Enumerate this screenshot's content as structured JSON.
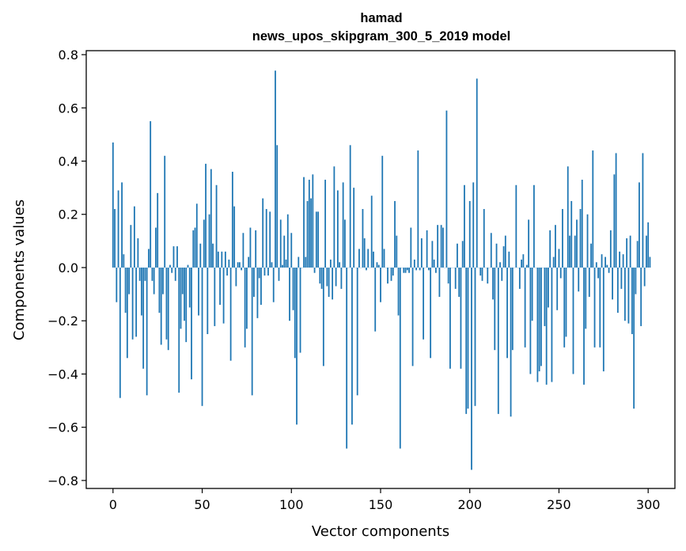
{
  "chart_data": {
    "type": "bar",
    "title_line1": "hamad",
    "title_line2": "news_upos_skipgram_300_5_2019 model",
    "xlabel": "Vector components",
    "ylabel": "Components values",
    "xlim": [
      -15,
      315
    ],
    "ylim": [
      -0.83,
      0.815
    ],
    "x_ticks": [
      0,
      50,
      100,
      150,
      200,
      250,
      300
    ],
    "x_tick_labels": [
      "0",
      "50",
      "100",
      "150",
      "200",
      "250",
      "300"
    ],
    "y_ticks": [
      0.8,
      0.6,
      0.4,
      0.2,
      0.0,
      -0.2,
      -0.4,
      -0.6,
      -0.8
    ],
    "y_tick_labels": [
      "0.8",
      "0.6",
      "0.4",
      "0.2",
      "0.0",
      "−0.2",
      "−0.4",
      "−0.6",
      "−0.8"
    ],
    "bar_color": "#1f77b4",
    "grid": false,
    "legend": "none",
    "values": [
      0.47,
      0.22,
      -0.13,
      0.29,
      -0.49,
      0.32,
      0.05,
      -0.17,
      -0.34,
      -0.1,
      0.16,
      -0.27,
      0.23,
      -0.26,
      0.11,
      -0.05,
      -0.18,
      -0.38,
      -0.05,
      -0.48,
      0.07,
      0.55,
      -0.05,
      -0.1,
      0.15,
      0.28,
      -0.17,
      -0.29,
      -0.1,
      0.42,
      -0.27,
      -0.31,
      0.01,
      -0.02,
      0.08,
      -0.05,
      0.08,
      -0.47,
      -0.23,
      -0.1,
      -0.2,
      -0.28,
      0.01,
      -0.15,
      -0.42,
      0.14,
      0.15,
      0.24,
      -0.18,
      0.09,
      -0.52,
      0.18,
      0.39,
      -0.25,
      0.2,
      0.37,
      0.09,
      -0.22,
      0.31,
      0.06,
      -0.14,
      0.06,
      -0.21,
      0.06,
      -0.03,
      0.03,
      -0.35,
      0.36,
      0.23,
      -0.07,
      0.02,
      0.02,
      -0.01,
      0.13,
      -0.3,
      -0.23,
      0.04,
      0.15,
      -0.48,
      -0.11,
      0.14,
      -0.19,
      -0.04,
      -0.14,
      0.26,
      -0.03,
      0.22,
      -0.03,
      0.21,
      0.02,
      -0.13,
      0.74,
      0.46,
      -0.05,
      0.18,
      0.01,
      0.12,
      0.03,
      0.2,
      -0.2,
      0.13,
      -0.16,
      -0.34,
      -0.59,
      0.04,
      -0.32,
      0.0,
      0.34,
      0.04,
      0.25,
      0.33,
      0.26,
      0.35,
      -0.02,
      0.21,
      0.21,
      -0.06,
      -0.08,
      -0.37,
      0.33,
      -0.07,
      -0.11,
      0.03,
      -0.12,
      0.38,
      -0.07,
      0.29,
      0.02,
      -0.08,
      0.32,
      0.18,
      -0.68,
      0.0,
      0.46,
      -0.59,
      0.3,
      0.0,
      -0.48,
      0.07,
      0.0,
      0.22,
      0.11,
      -0.01,
      0.07,
      0.0,
      0.27,
      0.06,
      -0.24,
      0.02,
      0.01,
      -0.13,
      0.42,
      0.07,
      0.0,
      -0.06,
      0.0,
      -0.05,
      -0.03,
      0.25,
      0.12,
      -0.18,
      -0.68,
      0.0,
      -0.02,
      -0.02,
      -0.01,
      -0.02,
      0.15,
      -0.37,
      0.03,
      -0.01,
      0.44,
      -0.01,
      0.11,
      -0.27,
      0.0,
      0.14,
      -0.01,
      -0.34,
      0.1,
      0.03,
      -0.02,
      0.16,
      -0.11,
      0.16,
      0.15,
      0.0,
      0.59,
      -0.06,
      -0.38,
      0.0,
      0.0,
      -0.08,
      0.09,
      -0.11,
      -0.38,
      0.1,
      0.31,
      -0.55,
      -0.53,
      0.25,
      -0.76,
      0.32,
      -0.52,
      0.71,
      0.0,
      -0.03,
      -0.05,
      0.22,
      0.0,
      -0.06,
      0.0,
      0.13,
      -0.12,
      -0.31,
      0.09,
      -0.55,
      0.02,
      -0.05,
      0.08,
      0.12,
      -0.34,
      0.06,
      -0.56,
      -0.31,
      0.0,
      0.31,
      0.0,
      -0.08,
      0.03,
      0.05,
      -0.3,
      0.01,
      0.18,
      -0.4,
      -0.2,
      0.31,
      0.0,
      -0.43,
      -0.39,
      -0.37,
      0.0,
      -0.22,
      -0.44,
      -0.15,
      0.14,
      -0.43,
      0.04,
      0.16,
      -0.16,
      0.07,
      -0.04,
      0.22,
      -0.3,
      -0.26,
      0.38,
      0.12,
      0.25,
      -0.4,
      0.12,
      0.18,
      -0.09,
      0.22,
      0.33,
      -0.44,
      -0.23,
      0.2,
      -0.11,
      0.09,
      0.44,
      -0.3,
      0.02,
      -0.04,
      -0.3,
      0.05,
      -0.39,
      0.04,
      0.01,
      -0.02,
      0.14,
      -0.12,
      0.35,
      0.43,
      -0.17,
      0.06,
      -0.08,
      0.05,
      -0.2,
      0.11,
      -0.21,
      0.12,
      -0.25,
      -0.53,
      -0.1,
      0.1,
      0.32,
      -0.22,
      0.43,
      -0.07,
      0.12,
      0.17,
      0.04
    ]
  }
}
